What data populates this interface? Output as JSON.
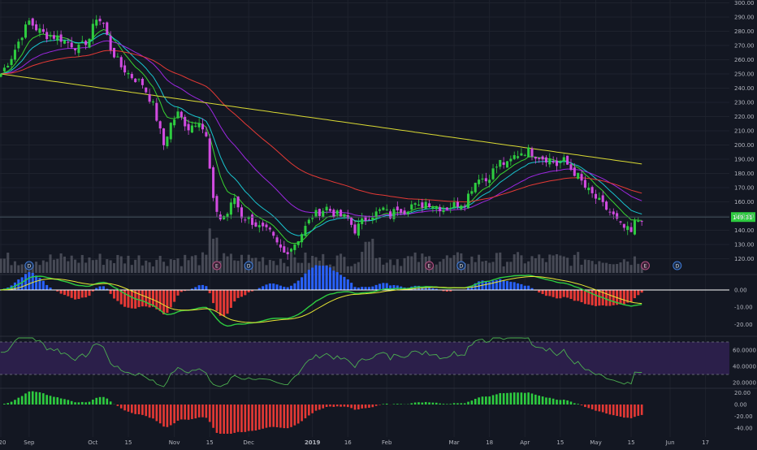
{
  "chart_data": {
    "type": "candlestick",
    "title": "",
    "symbol_last_price": "149.31",
    "colors": {
      "background": "#131722",
      "grid": "#1e222d",
      "axis_text": "#b2b5be",
      "up": "#2ecc40",
      "down": "#d14be0",
      "volume": "#5d606b",
      "ema_fast": "#38d430",
      "ema_mid": "#19c5cf",
      "ema_slow": "#9c27e0",
      "ma_red": "#e53935",
      "ma_yellow": "#d9d933",
      "macd": "#2ecc40",
      "macd_signal": "#e8e833",
      "hist_pos": "#2962ff",
      "hist_neg": "#e53935",
      "rsi_line": "#4caf50",
      "rsi_band": "#2b1f4a",
      "osc_pos": "#2ecc40",
      "osc_neg": "#e53935"
    },
    "x_tick_labels": [
      {
        "label": "20",
        "t": 0
      },
      {
        "label": "Sep",
        "t": 8
      },
      {
        "label": "Oct",
        "t": 26
      },
      {
        "label": "15",
        "t": 36
      },
      {
        "label": "Nov",
        "t": 49
      },
      {
        "label": "15",
        "t": 59
      },
      {
        "label": "Dec",
        "t": 70
      },
      {
        "label": "2019",
        "t": 88
      },
      {
        "label": "16",
        "t": 98
      },
      {
        "label": "Feb",
        "t": 109
      },
      {
        "label": "Mar",
        "t": 128
      },
      {
        "label": "18",
        "t": 138
      },
      {
        "label": "Apr",
        "t": 148
      },
      {
        "label": "15",
        "t": 158
      },
      {
        "label": "May",
        "t": 168
      },
      {
        "label": "15",
        "t": 178
      },
      {
        "label": "Jun",
        "t": 189
      },
      {
        "label": "17",
        "t": 199
      }
    ],
    "price_axis": {
      "min": 110,
      "max": 302,
      "ticks": [
        "300.00",
        "290.00",
        "280.00",
        "270.00",
        "260.00",
        "250.00",
        "240.00",
        "230.00",
        "220.00",
        "210.00",
        "200.00",
        "190.00",
        "180.00",
        "170.00",
        "160.00",
        "150.00",
        "140.00",
        "130.00",
        "120.00"
      ]
    },
    "macd_axis": {
      "min": -25,
      "max": 8,
      "ticks": [
        "0.00",
        "-10.00",
        "-20.00"
      ]
    },
    "rsi_axis": {
      "min": 15,
      "max": 75,
      "ticks": [
        "60.0000",
        "40.0000",
        "20.0000"
      ]
    },
    "osc_axis": {
      "min": -50,
      "max": 25,
      "ticks": [
        "20.00",
        "0.00",
        "-20.00",
        "-40.00"
      ]
    },
    "price_waypoints": [
      [
        0,
        250
      ],
      [
        3,
        262
      ],
      [
        6,
        278
      ],
      [
        8,
        287
      ],
      [
        10,
        282
      ],
      [
        13,
        277
      ],
      [
        16,
        276
      ],
      [
        19,
        272
      ],
      [
        22,
        268
      ],
      [
        25,
        275
      ],
      [
        27,
        290
      ],
      [
        29,
        285
      ],
      [
        31,
        268
      ],
      [
        34,
        255
      ],
      [
        37,
        248
      ],
      [
        40,
        243
      ],
      [
        43,
        228
      ],
      [
        46,
        200
      ],
      [
        48,
        215
      ],
      [
        50,
        222
      ],
      [
        53,
        212
      ],
      [
        56,
        218
      ],
      [
        58,
        205
      ],
      [
        60,
        160
      ],
      [
        62,
        148
      ],
      [
        64,
        152
      ],
      [
        66,
        163
      ],
      [
        68,
        150
      ],
      [
        70,
        148
      ],
      [
        73,
        142
      ],
      [
        76,
        138
      ],
      [
        78,
        130
      ],
      [
        80,
        124
      ],
      [
        82,
        128
      ],
      [
        84,
        134
      ],
      [
        86,
        142
      ],
      [
        88,
        150
      ],
      [
        90,
        153
      ],
      [
        92,
        156
      ],
      [
        94,
        152
      ],
      [
        96,
        150
      ],
      [
        98,
        148
      ],
      [
        100,
        140
      ],
      [
        102,
        146
      ],
      [
        104,
        150
      ],
      [
        106,
        152
      ],
      [
        108,
        155
      ],
      [
        110,
        150
      ],
      [
        112,
        156
      ],
      [
        114,
        154
      ],
      [
        116,
        158
      ],
      [
        118,
        156
      ],
      [
        120,
        160
      ],
      [
        122,
        158
      ],
      [
        125,
        155
      ],
      [
        128,
        158
      ],
      [
        131,
        160
      ],
      [
        133,
        170
      ],
      [
        135,
        178
      ],
      [
        137,
        175
      ],
      [
        139,
        182
      ],
      [
        141,
        188
      ],
      [
        143,
        186
      ],
      [
        145,
        192
      ],
      [
        147,
        195
      ],
      [
        149,
        196
      ],
      [
        151,
        193
      ],
      [
        153,
        191
      ],
      [
        155,
        190
      ],
      [
        157,
        186
      ],
      [
        159,
        189
      ],
      [
        161,
        183
      ],
      [
        163,
        178
      ],
      [
        165,
        170
      ],
      [
        167,
        165
      ],
      [
        169,
        160
      ],
      [
        171,
        155
      ],
      [
        173,
        150
      ],
      [
        175,
        143
      ],
      [
        177,
        140
      ],
      [
        178,
        138
      ],
      [
        179,
        145
      ],
      [
        181,
        149
      ]
    ],
    "volume_markers": [
      "D",
      "E",
      "D",
      "E",
      "D",
      "E",
      "D"
    ],
    "note_markers": [
      {
        "label": "E"
      },
      {
        "label": "D"
      }
    ]
  }
}
